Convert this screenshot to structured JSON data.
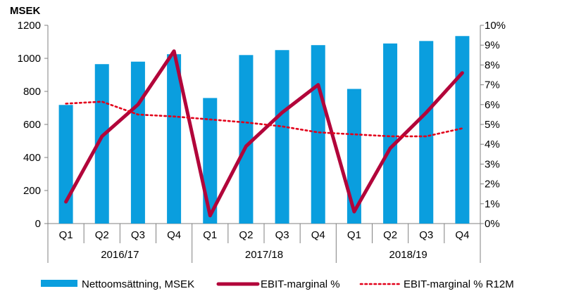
{
  "chart_data": {
    "type": "bar",
    "title": "",
    "left_axis_unit": "MSEK",
    "categories": [
      "Q1",
      "Q2",
      "Q3",
      "Q4",
      "Q1",
      "Q2",
      "Q3",
      "Q4",
      "Q1",
      "Q2",
      "Q3",
      "Q4"
    ],
    "groups": [
      {
        "label": "2016/17",
        "count": 4
      },
      {
        "label": "2017/18",
        "count": 4
      },
      {
        "label": "2018/19",
        "count": 4
      }
    ],
    "left_axis": {
      "min": 0,
      "max": 1200,
      "ticks": [
        "0",
        "200",
        "400",
        "600",
        "800",
        "1000",
        "1200"
      ]
    },
    "right_axis": {
      "min": 0,
      "max": 10,
      "ticks": [
        "0%",
        "1%",
        "2%",
        "3%",
        "4%",
        "5%",
        "6%",
        "7%",
        "8%",
        "9%",
        "10%"
      ]
    },
    "series": [
      {
        "name": "Nettoomsättning, MSEK",
        "type": "bar",
        "axis": "left",
        "color": "#0a9ede",
        "values": [
          718,
          965,
          980,
          1025,
          760,
          1020,
          1050,
          1080,
          815,
          1090,
          1105,
          1135
        ]
      },
      {
        "name": "EBIT-marginal %",
        "type": "line",
        "axis": "right",
        "color": "#b2053a",
        "values": [
          1.1,
          4.4,
          6.0,
          8.7,
          0.4,
          3.9,
          5.6,
          7.0,
          0.6,
          3.8,
          5.6,
          7.6
        ]
      },
      {
        "name": "EBIT-marginal % R12M",
        "type": "line",
        "style": "dotted",
        "axis": "right",
        "color": "#e2001a",
        "values": [
          6.05,
          6.15,
          5.5,
          5.4,
          5.25,
          5.1,
          4.9,
          4.6,
          4.5,
          4.4,
          4.4,
          4.8
        ]
      }
    ],
    "legend_position": "bottom"
  }
}
